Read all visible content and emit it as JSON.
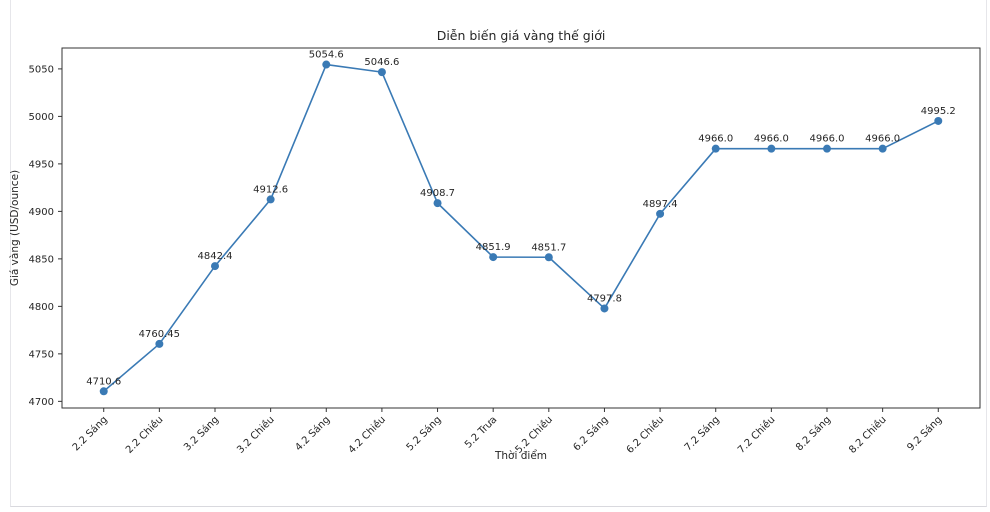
{
  "chart_data": {
    "type": "line",
    "title": "Diễn biến giá vàng thế giới",
    "xlabel": "Thời điểm",
    "ylabel": "Giá vàng (USD/ounce)",
    "categories": [
      "2.2 Sáng",
      "2.2 Chiều",
      "3.2 Sáng",
      "3.2 Chiều",
      "4.2 Sáng",
      "4.2 Chiều",
      "5.2 Sáng",
      "5.2 Trưa",
      "5.2 Chiều",
      "6.2 Sáng",
      "6.2 Chiều",
      "7.2 Sáng",
      "7.2 Chiều",
      "8.2 Sáng",
      "8.2 Chiều",
      "9.2 Sáng"
    ],
    "values": [
      4710.6,
      4760.45,
      4842.4,
      4912.6,
      5054.6,
      5046.6,
      4908.7,
      4851.9,
      4851.7,
      4797.8,
      4897.4,
      4966.0,
      4966.0,
      4966.0,
      4966.0,
      4995.2
    ],
    "point_labels": [
      "4710.6",
      "4760.45",
      "4842.4",
      "4912.6",
      "5054.6",
      "5046.6",
      "4908.7",
      "4851.9",
      "4851.7",
      "4797.8",
      "4897.4",
      "4966.0",
      "4966.0",
      "4966.0",
      "4966.0",
      "4995.2"
    ],
    "yticks": [
      4700,
      4750,
      4800,
      4850,
      4900,
      4950,
      5000,
      5050
    ],
    "ylim": [
      4693,
      5072
    ],
    "x_tick_rotation_deg": 45,
    "grid": false,
    "legend": "none",
    "line_color": "#3a7ab5",
    "marker": "circle",
    "spine_color": "#333333",
    "text_color": "#262626"
  }
}
